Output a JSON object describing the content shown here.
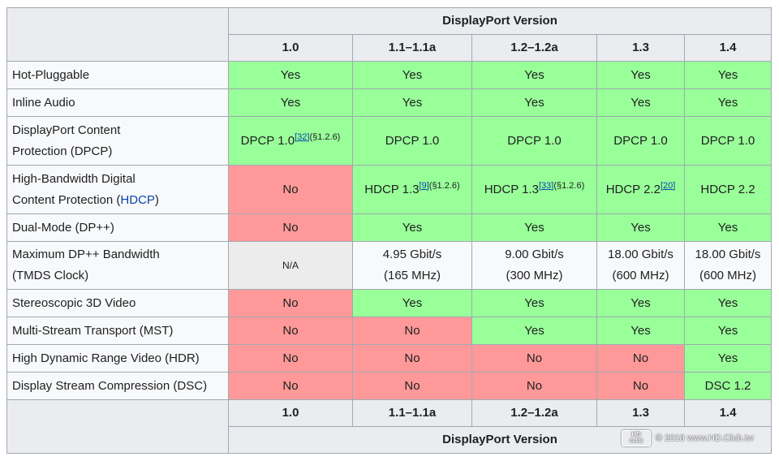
{
  "header": {
    "title": "DisplayPort Version",
    "versions": [
      "1.0",
      "1.1–1.1a",
      "1.2–1.2a",
      "1.3",
      "1.4"
    ]
  },
  "rows": [
    {
      "feature": "Hot-Pluggable",
      "cells": [
        "Yes",
        "Yes",
        "Yes",
        "Yes",
        "Yes"
      ]
    },
    {
      "feature": "Inline Audio",
      "cells": [
        "Yes",
        "Yes",
        "Yes",
        "Yes",
        "Yes"
      ]
    },
    {
      "feature_line1": "DisplayPort Content",
      "feature_line2": "Protection (DPCP)",
      "c0": "DPCP 1.0",
      "c0_ref": "[32]",
      "c0_sec": "(§1.2.6)",
      "cells": [
        "DPCP 1.0",
        "DPCP 1.0",
        "DPCP 1.0",
        "DPCP 1.0"
      ]
    },
    {
      "feature_line1": "High-Bandwidth Digital",
      "feature_line2a": "Content Protection (",
      "feature_link": "HDCP",
      "feature_line2b": ")",
      "c0": "No",
      "c1": "HDCP 1.3",
      "c1_ref": "[9]",
      "c1_sec": "(§1.2.6)",
      "c2": "HDCP 1.3",
      "c2_ref": "[33]",
      "c2_sec": "(§1.2.6)",
      "c3": "HDCP 2.2",
      "c3_ref": "[20]",
      "c4": "HDCP 2.2"
    },
    {
      "feature": "Dual-Mode (DP++)",
      "cells": [
        "No",
        "Yes",
        "Yes",
        "Yes",
        "Yes"
      ]
    },
    {
      "feature_line1": "Maximum DP++ Bandwidth",
      "feature_line2": "(TMDS Clock)",
      "c0": "N/A",
      "cells_line1": [
        "4.95 Gbit/s",
        "9.00 Gbit/s",
        "18.00 Gbit/s",
        "18.00 Gbit/s"
      ],
      "cells_line2": [
        "(165 MHz)",
        "(300 MHz)",
        "(600 MHz)",
        "(600 MHz)"
      ]
    },
    {
      "feature": "Stereoscopic 3D Video",
      "cells": [
        "No",
        "Yes",
        "Yes",
        "Yes",
        "Yes"
      ]
    },
    {
      "feature": "Multi-Stream Transport (MST)",
      "cells": [
        "No",
        "No",
        "Yes",
        "Yes",
        "Yes"
      ]
    },
    {
      "feature": "High Dynamic Range Video (HDR)",
      "cells": [
        "No",
        "No",
        "No",
        "No",
        "Yes"
      ]
    },
    {
      "feature": "Display Stream Compression (DSC)",
      "cells": [
        "No",
        "No",
        "No",
        "No",
        "DSC 1.2"
      ]
    }
  ],
  "footer": {
    "versions": [
      "1.0",
      "1.1–1.1a",
      "1.2–1.2a",
      "1.3",
      "1.4"
    ],
    "title": "DisplayPort Version"
  },
  "watermark": {
    "logo_top": "HD",
    "logo_bottom": "CLUB",
    "text": "© 2018 www.HD.Club.tw"
  },
  "colors": {
    "yes": "#99ff99",
    "no": "#ff9999",
    "na": "#ececec",
    "header": "#eaecf0",
    "link": "#0645ad"
  }
}
